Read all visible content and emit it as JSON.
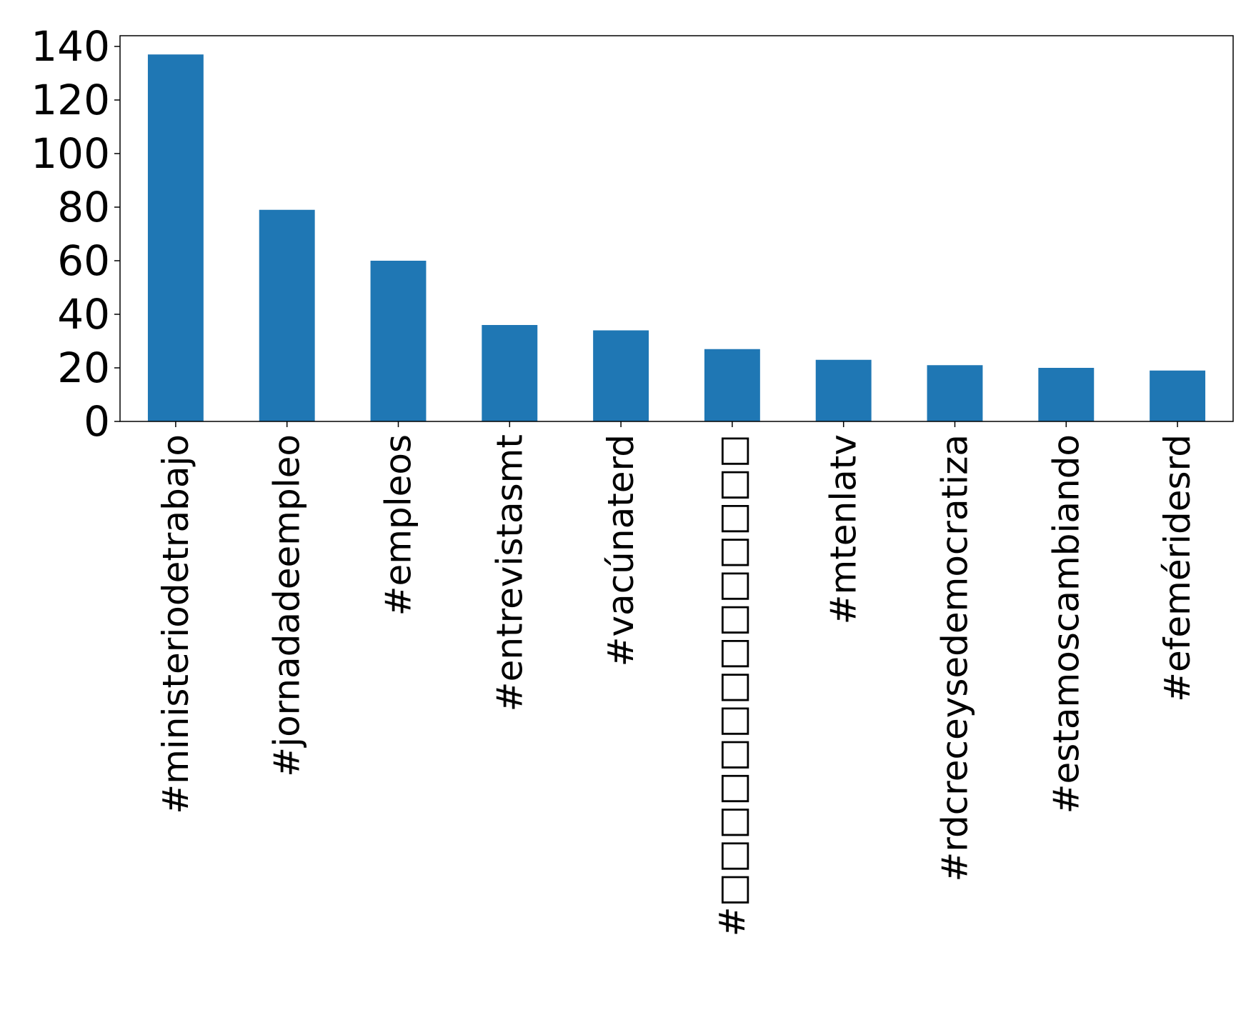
{
  "chart_data": {
    "type": "bar",
    "title": "",
    "xlabel": "",
    "ylabel": "",
    "categories": [
      "#ministeriodetrabajo",
      "#jornadadeempleo",
      "#empleos",
      "#entrevistasmt",
      "#vacúnaterd",
      "#□□□□□□□□□□□□□□",
      "#mtenlatv",
      "#rdcreceysedemocratiza",
      "#estamoscambiando",
      "#efeméridesrd"
    ],
    "values": [
      137,
      79,
      60,
      36,
      34,
      27,
      23,
      21,
      20,
      19
    ],
    "ylim": [
      0,
      144
    ],
    "yticks": [
      0,
      20,
      40,
      60,
      80,
      100,
      120,
      140
    ],
    "bar_color": "#1f77b4",
    "grid": false,
    "legend": "none"
  }
}
